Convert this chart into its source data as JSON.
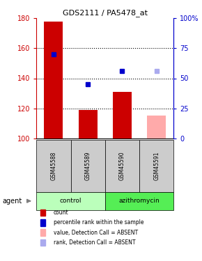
{
  "title": "GDS2111 / PA5478_at",
  "samples": [
    "GSM45588",
    "GSM45589",
    "GSM45590",
    "GSM45591"
  ],
  "groups": [
    "control",
    "control",
    "azithromycin",
    "azithromycin"
  ],
  "bar_values": [
    178,
    119,
    131,
    115
  ],
  "bar_colors": [
    "#cc0000",
    "#cc0000",
    "#cc0000",
    "#ffaaaa"
  ],
  "dot_values": [
    156,
    136,
    145,
    145
  ],
  "dot_colors": [
    "#0000cc",
    "#0000cc",
    "#0000cc",
    "#aaaaee"
  ],
  "ylim": [
    100,
    180
  ],
  "yticks_left": [
    100,
    120,
    140,
    160,
    180
  ],
  "yticks_right": [
    0,
    25,
    50,
    75,
    100
  ],
  "ylabel_left_color": "#cc0000",
  "ylabel_right_color": "#0000cc",
  "bar_width": 0.55,
  "group_colors": {
    "control": "#bbffbb",
    "azithromycin": "#55ee55"
  },
  "group_lighter": "#ccffcc",
  "legend_items": [
    {
      "label": "count",
      "color": "#cc0000"
    },
    {
      "label": "percentile rank within the sample",
      "color": "#0000cc"
    },
    {
      "label": "value, Detection Call = ABSENT",
      "color": "#ffaaaa"
    },
    {
      "label": "rank, Detection Call = ABSENT",
      "color": "#aaaaee"
    }
  ],
  "agent_label": "agent",
  "background_color": "#ffffff",
  "sample_box_color": "#cccccc",
  "grid_color": "#000000"
}
